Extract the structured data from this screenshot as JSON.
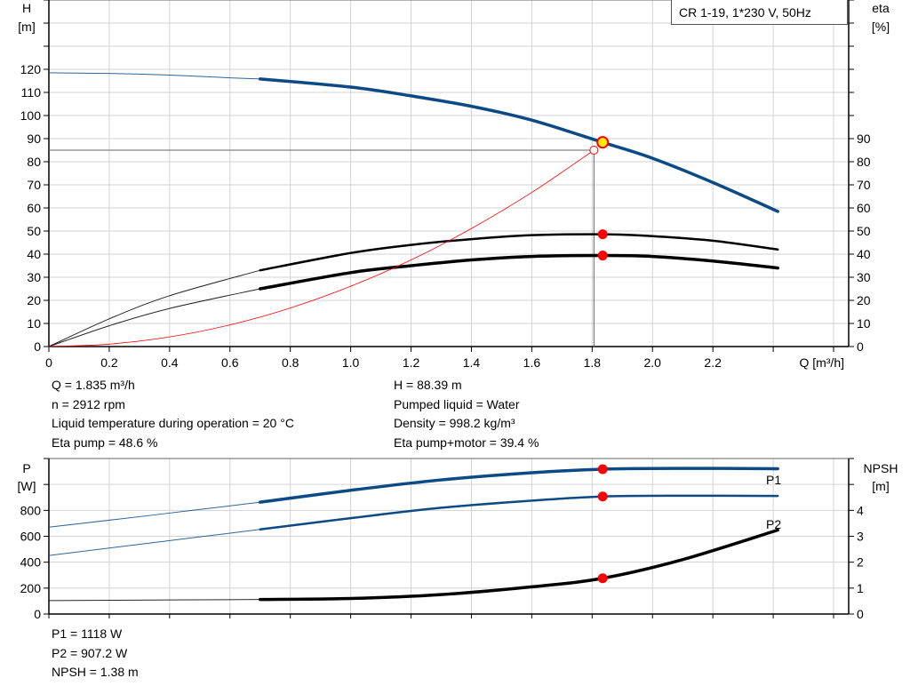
{
  "colors": {
    "head": "#0b4a85",
    "efficiency": "#000000",
    "system": "#ff0000",
    "power": "#0b4a85",
    "npsh": "#000000",
    "grid": "#d3d3d3",
    "duty_point": "#ff0000",
    "operating_point": "#ffee00"
  },
  "chart_data": [
    {
      "type": "line",
      "title": "CR 1-19, 1*230 V, 50Hz",
      "xlabel": "Q [m³/h]",
      "ylabel_left": [
        "H",
        "[m]"
      ],
      "ylabel_right": [
        "eta",
        "[%]"
      ],
      "xlim": [
        0,
        2.65
      ],
      "ylim_left": [
        0,
        150
      ],
      "ylim_right": [
        0,
        150
      ],
      "grid": true,
      "x_ticks": [
        "0",
        "0.2",
        "0.4",
        "0.6",
        "0.8",
        "1.0",
        "1.2",
        "1.4",
        "1.6",
        "1.8",
        "2.0",
        "2.2"
      ],
      "x_tick_values": [
        0,
        0.2,
        0.4,
        0.6,
        0.8,
        1.0,
        1.2,
        1.4,
        1.6,
        1.8,
        2.0,
        2.2
      ],
      "y_ticks_left": [
        "0",
        "10",
        "20",
        "30",
        "40",
        "50",
        "60",
        "70",
        "80",
        "90",
        "100",
        "110",
        "120"
      ],
      "y_ticks_right": [
        "0",
        "10",
        "20",
        "30",
        "40",
        "50",
        "60",
        "70",
        "80",
        "90"
      ],
      "series": [
        {
          "key": "H",
          "axis": "left",
          "color": "#0b4a85",
          "thick_from": 0.7,
          "x": [
            0,
            0.2,
            0.4,
            0.6,
            0.7,
            1.0,
            1.2,
            1.4,
            1.6,
            1.835,
            2.0,
            2.2,
            2.415
          ],
          "y": [
            118.5,
            118.2,
            117.5,
            116.3,
            115.8,
            112.3,
            108.5,
            104,
            98,
            88.39,
            81.5,
            71,
            58.5
          ]
        },
        {
          "key": "eta_pump",
          "axis": "right",
          "color": "#000000",
          "thick_from": 0.7,
          "x": [
            0,
            0.2,
            0.4,
            0.7,
            1.0,
            1.2,
            1.4,
            1.6,
            1.835,
            2.0,
            2.2,
            2.415
          ],
          "y": [
            0,
            12,
            22,
            33,
            40.5,
            44,
            46.5,
            48.2,
            48.6,
            47.8,
            45.8,
            42
          ]
        },
        {
          "key": "eta_pump_motor",
          "axis": "right",
          "color": "#000000",
          "thick_from": 0.7,
          "x": [
            0,
            0.2,
            0.4,
            0.7,
            1.0,
            1.2,
            1.4,
            1.6,
            1.835,
            2.0,
            2.2,
            2.415
          ],
          "y": [
            0,
            9,
            16.5,
            25,
            32,
            35,
            37.5,
            39,
            39.4,
            39,
            37,
            34
          ]
        },
        {
          "key": "system_curve",
          "axis": "left",
          "color": "#ff0000",
          "x": [
            0,
            0.2,
            0.4,
            0.6,
            0.8,
            1.0,
            1.2,
            1.4,
            1.6,
            1.806
          ],
          "y": [
            0,
            1.04,
            4.17,
            9.38,
            16.7,
            26.1,
            37.5,
            51.1,
            66.7,
            85
          ]
        }
      ],
      "duty_point": {
        "Q": 1.835,
        "H": 88.39,
        "eta_pump": 48.6,
        "eta_pump_motor": 39.4
      },
      "system_end": {
        "Q": 1.806,
        "H": 85
      }
    },
    {
      "type": "line",
      "ylabel_left": [
        "P",
        "[W]"
      ],
      "ylabel_right": [
        "NPSH",
        "[m]"
      ],
      "xlim": [
        0,
        2.65
      ],
      "ylim_left": [
        0,
        1200
      ],
      "ylim_right": [
        0,
        6
      ],
      "grid": true,
      "y_ticks_left": [
        "0",
        "200",
        "400",
        "600",
        "800"
      ],
      "y_ticks_right": [
        "0",
        "1",
        "2",
        "3",
        "4"
      ],
      "series": [
        {
          "key": "P1",
          "name": "P1",
          "axis": "left",
          "color": "#0b4a85",
          "thick_from": 0.7,
          "x": [
            0,
            0.35,
            0.7,
            1.0,
            1.3,
            1.6,
            1.835,
            2.1,
            2.415
          ],
          "y": [
            670,
            765,
            863,
            955,
            1035,
            1090,
            1118,
            1124,
            1121
          ]
        },
        {
          "key": "P2",
          "name": "P2",
          "axis": "left",
          "color": "#0b4a85",
          "thick_from": 0.7,
          "x": [
            0,
            0.35,
            0.7,
            1.0,
            1.3,
            1.6,
            1.835,
            2.1,
            2.415
          ],
          "y": [
            452,
            552,
            653,
            740,
            820,
            875,
            907.2,
            913,
            911
          ]
        },
        {
          "key": "NPSH",
          "axis": "right",
          "color": "#000000",
          "thick_from": 0.7,
          "x": [
            0,
            0.35,
            0.7,
            1.0,
            1.3,
            1.6,
            1.835,
            2.1,
            2.415
          ],
          "y": [
            0.52,
            0.54,
            0.56,
            0.6,
            0.75,
            1.05,
            1.38,
            2.1,
            3.24
          ]
        }
      ],
      "duty_point": {
        "Q": 1.835,
        "P1": 1118,
        "P2": 907.2,
        "NPSH": 1.38
      }
    }
  ],
  "results_left": [
    "Q = 1.835 m³/h",
    "n = 2912 rpm",
    "Liquid temperature during operation = 20 °C",
    "Eta pump = 48.6 %"
  ],
  "results_right": [
    "H = 88.39 m",
    "Pumped liquid = Water",
    "Density = 998.2 kg/m³",
    "Eta pump+motor = 39.4 %"
  ],
  "power_results": [
    "P1 = 1118 W",
    "P2 = 907.2 W",
    "NPSH = 1.38 m"
  ]
}
